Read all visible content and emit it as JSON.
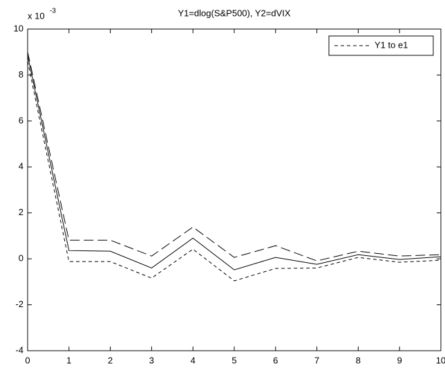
{
  "chart_data": {
    "type": "line",
    "title": "Y1=dlog(S&P500), Y2=dVIX",
    "y_multiplier": {
      "base": "x 10",
      "exponent": "-3"
    },
    "x": [
      0,
      1,
      2,
      3,
      4,
      5,
      6,
      7,
      8,
      9,
      10
    ],
    "series": [
      {
        "color": "#000000",
        "dash": "solid",
        "values": [
          8.85,
          0.36,
          0.33,
          -0.4,
          0.9,
          -0.48,
          0.06,
          -0.24,
          0.18,
          -0.03,
          0.09
        ]
      },
      {
        "color": "#000000",
        "dash": "long",
        "values": [
          9.0,
          0.81,
          0.81,
          0.12,
          1.38,
          0.06,
          0.57,
          -0.09,
          0.33,
          0.12,
          0.18
        ]
      },
      {
        "name": "Y1 to e1",
        "color": "#000000",
        "dash": "short",
        "values": [
          8.6,
          -0.12,
          -0.12,
          -0.84,
          0.42,
          -0.96,
          -0.42,
          -0.4,
          0.06,
          -0.15,
          -0.06
        ]
      }
    ],
    "xlim": [
      0,
      10
    ],
    "xticks": [
      0,
      1,
      2,
      3,
      4,
      5,
      6,
      7,
      8,
      9,
      10
    ],
    "ylim": [
      -4,
      10
    ],
    "yticks": [
      -4,
      -2,
      0,
      2,
      4,
      6,
      8,
      10
    ],
    "grid": false,
    "legend": "upper right"
  }
}
